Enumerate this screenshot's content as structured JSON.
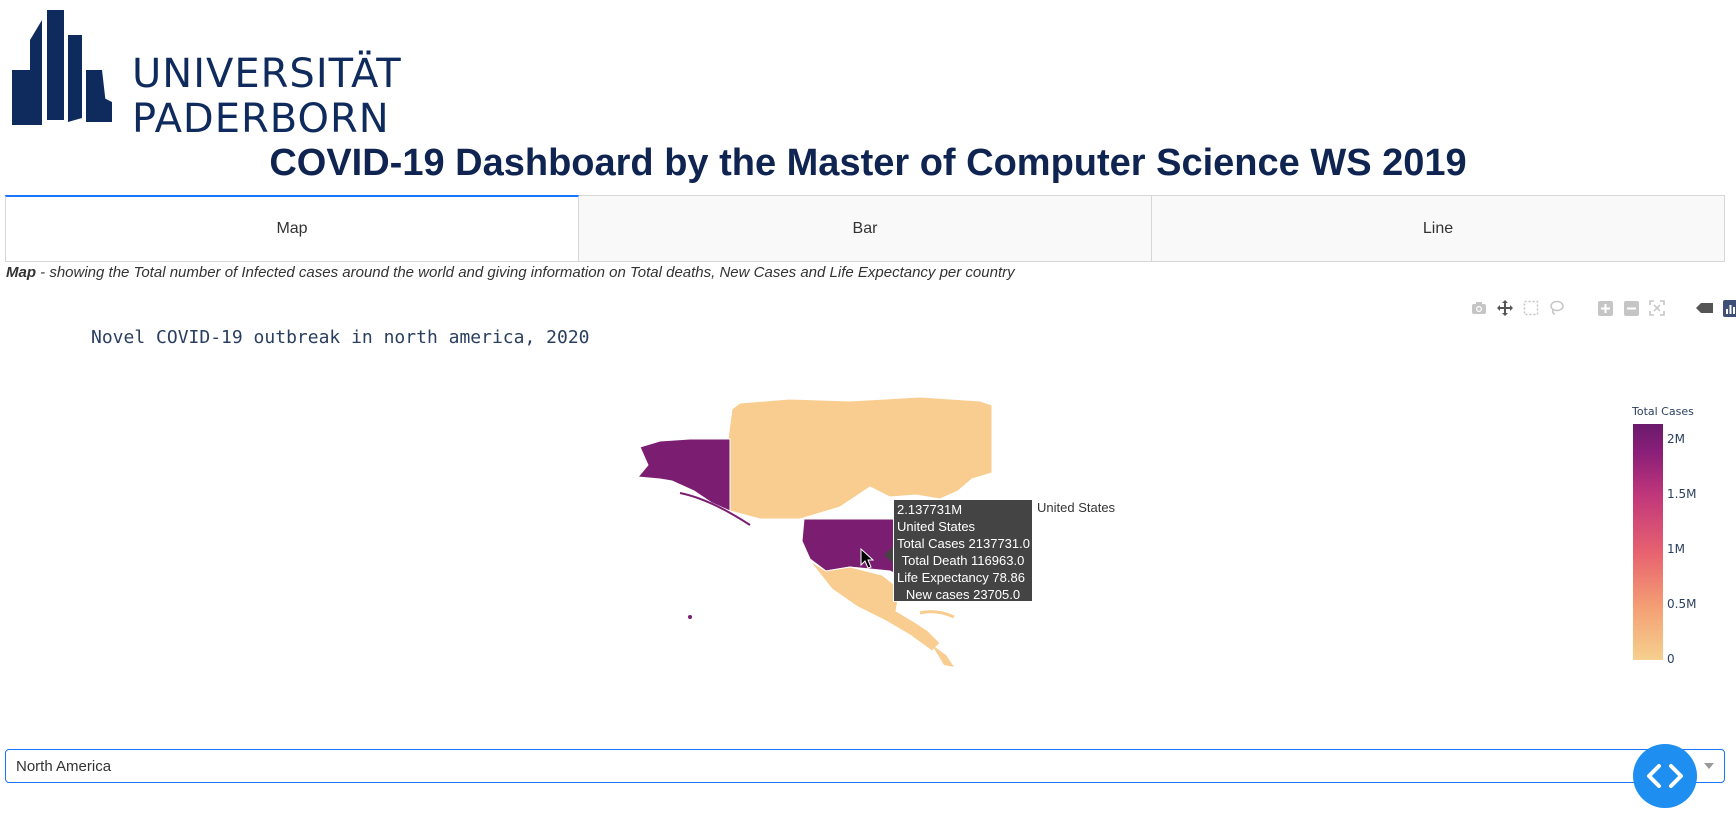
{
  "header": {
    "logo_line1": "UNIVERSITÄT",
    "logo_line2": "PADERBORN",
    "title": "COVID-19 Dashboard by the Master of Computer Science WS 2019"
  },
  "tabs": [
    {
      "label": "Map",
      "active": true
    },
    {
      "label": "Bar",
      "active": false
    },
    {
      "label": "Line",
      "active": false
    }
  ],
  "caption": {
    "bold": "Map",
    "text": " - showing the Total number of Infected cases around the world and giving information on Total deaths, New Cases and Life Expectancy per country"
  },
  "modebar": {
    "icons": [
      "camera-icon",
      "pan-icon",
      "box-select-icon",
      "lasso-icon",
      "zoom-in-icon",
      "zoom-out-icon",
      "autoscale-icon",
      "hover-toggle-icon",
      "plotly-logo-icon"
    ]
  },
  "chart_data": {
    "type": "choropleth",
    "title": "Novel COVID-19 outbreak in north america, 2020",
    "colorbar_title": "Total Cases",
    "colorbar_ticks": [
      "2M",
      "1.5M",
      "1M",
      "0.5M",
      "0"
    ],
    "colorbar_range": [
      0,
      2137731
    ],
    "colorscale": [
      "#f6d08e",
      "#f4a074",
      "#e8636f",
      "#c0367b",
      "#8a1f78",
      "#6a1a6e"
    ],
    "highlighted_country": "United States",
    "highlight_color": "#7b1e72",
    "base_color": "#f8cd8f"
  },
  "tooltip": {
    "lines": [
      "2.137731M",
      "United States",
      "Total Cases 2137731.0",
      "Total Death 116963.0",
      "Life Expectancy 78.86",
      "New cases 23705.0"
    ],
    "side_label": "United States"
  },
  "dropdown": {
    "value": "North America"
  },
  "colors": {
    "brand_navy": "#0f2a5c",
    "accent_blue": "#1975fa",
    "fab_blue": "#1e8ef0"
  }
}
